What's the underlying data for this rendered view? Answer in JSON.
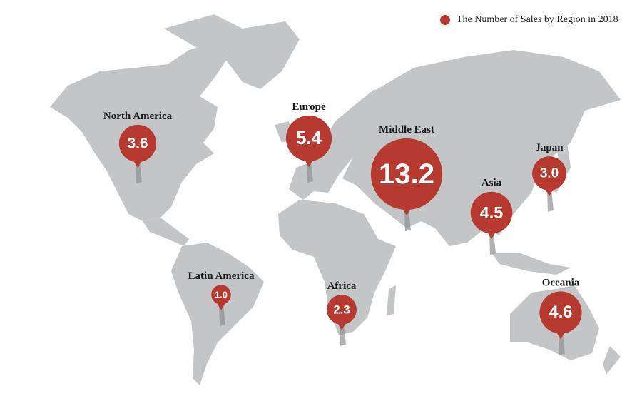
{
  "chart_data": {
    "type": "bubble-map",
    "categories": [
      "North America",
      "Europe",
      "Middle East",
      "Japan",
      "Asia",
      "Latin America",
      "Africa",
      "Oceania"
    ],
    "series": [
      {
        "name": "The Number of Sales by Region in 2018",
        "color": "#b63a2f",
        "values": [
          3.6,
          5.4,
          13.2,
          3.0,
          4.5,
          1.0,
          2.3,
          4.6
        ],
        "value_labels": [
          "3.6",
          "5.4",
          "13.2",
          "3.0",
          "4.5",
          "1.0",
          "2.3",
          "4.6"
        ]
      }
    ],
    "legend": "top-right"
  }
}
